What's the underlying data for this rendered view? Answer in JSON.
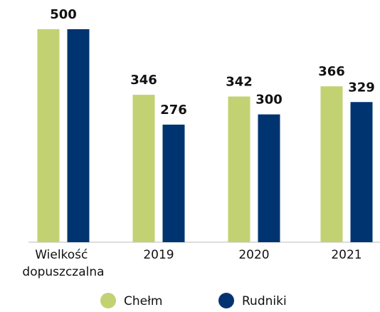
{
  "chart_data": {
    "type": "bar",
    "categories": [
      "Wielkość dopuszczalna",
      "2019",
      "2020",
      "2021"
    ],
    "series": [
      {
        "name": "Chełm",
        "color": "#c2d273",
        "values": [
          500,
          346,
          342,
          366
        ],
        "value_labels": [
          "500",
          "346",
          "342",
          "366"
        ]
      },
      {
        "name": "Rudniki",
        "color": "#003470",
        "values": [
          500,
          276,
          300,
          329
        ],
        "value_labels": [
          null,
          "276",
          "300",
          "329"
        ]
      }
    ],
    "ylim": [
      0,
      500
    ],
    "legend": "bottom"
  }
}
